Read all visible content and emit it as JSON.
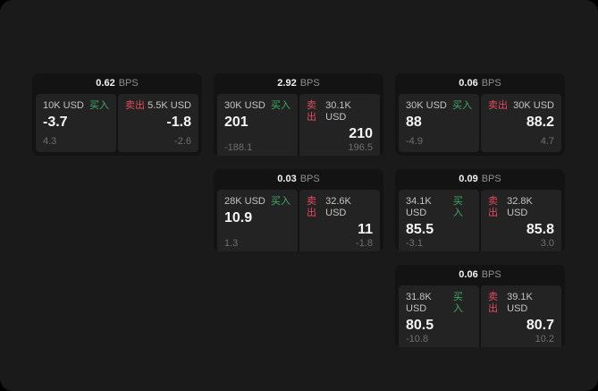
{
  "labels": {
    "bps_unit": "BPS",
    "buy": "买入",
    "sell": "卖出"
  },
  "colors": {
    "outer_bg": "#000000",
    "container_bg": "#1a1a1a",
    "card_bg": "#131313",
    "panel_bg": "#232323",
    "buy": "#3fab68",
    "sell": "#e44a5f",
    "label_gray": "#c3c3c3",
    "delta_gray": "#6f6f6f",
    "unit_gray": "#8f8f8f"
  },
  "cards": [
    {
      "grid": {
        "row": 1,
        "col": 1
      },
      "bps": "0.62",
      "buy": {
        "size": "10K USD",
        "price": "-3.7",
        "delta": "4.3"
      },
      "sell": {
        "size": "5.5K USD",
        "price": "-1.8",
        "delta": "-2.6"
      }
    },
    {
      "grid": {
        "row": 1,
        "col": 2
      },
      "bps": "2.92",
      "buy": {
        "size": "30K USD",
        "price": "201",
        "delta": "-188.1"
      },
      "sell": {
        "size": "30.1K USD",
        "price": "210",
        "delta": "196.5"
      }
    },
    {
      "grid": {
        "row": 1,
        "col": 3
      },
      "bps": "0.06",
      "buy": {
        "size": "30K USD",
        "price": "88",
        "delta": "-4.9"
      },
      "sell": {
        "size": "30K USD",
        "price": "88.2",
        "delta": "4.7"
      }
    },
    {
      "grid": {
        "row": 2,
        "col": 2
      },
      "bps": "0.03",
      "buy": {
        "size": "28K USD",
        "price": "10.9",
        "delta": "1.3"
      },
      "sell": {
        "size": "32.6K USD",
        "price": "11",
        "delta": "-1.8"
      }
    },
    {
      "grid": {
        "row": 2,
        "col": 3
      },
      "bps": "0.09",
      "buy": {
        "size": "34.1K USD",
        "price": "85.5",
        "delta": "-3.1"
      },
      "sell": {
        "size": "32.8K USD",
        "price": "85.8",
        "delta": "3.0"
      }
    },
    {
      "grid": {
        "row": 3,
        "col": 3
      },
      "bps": "0.06",
      "buy": {
        "size": "31.8K USD",
        "price": "80.5",
        "delta": "-10.8"
      },
      "sell": {
        "size": "39.1K USD",
        "price": "80.7",
        "delta": "10.2"
      }
    }
  ]
}
